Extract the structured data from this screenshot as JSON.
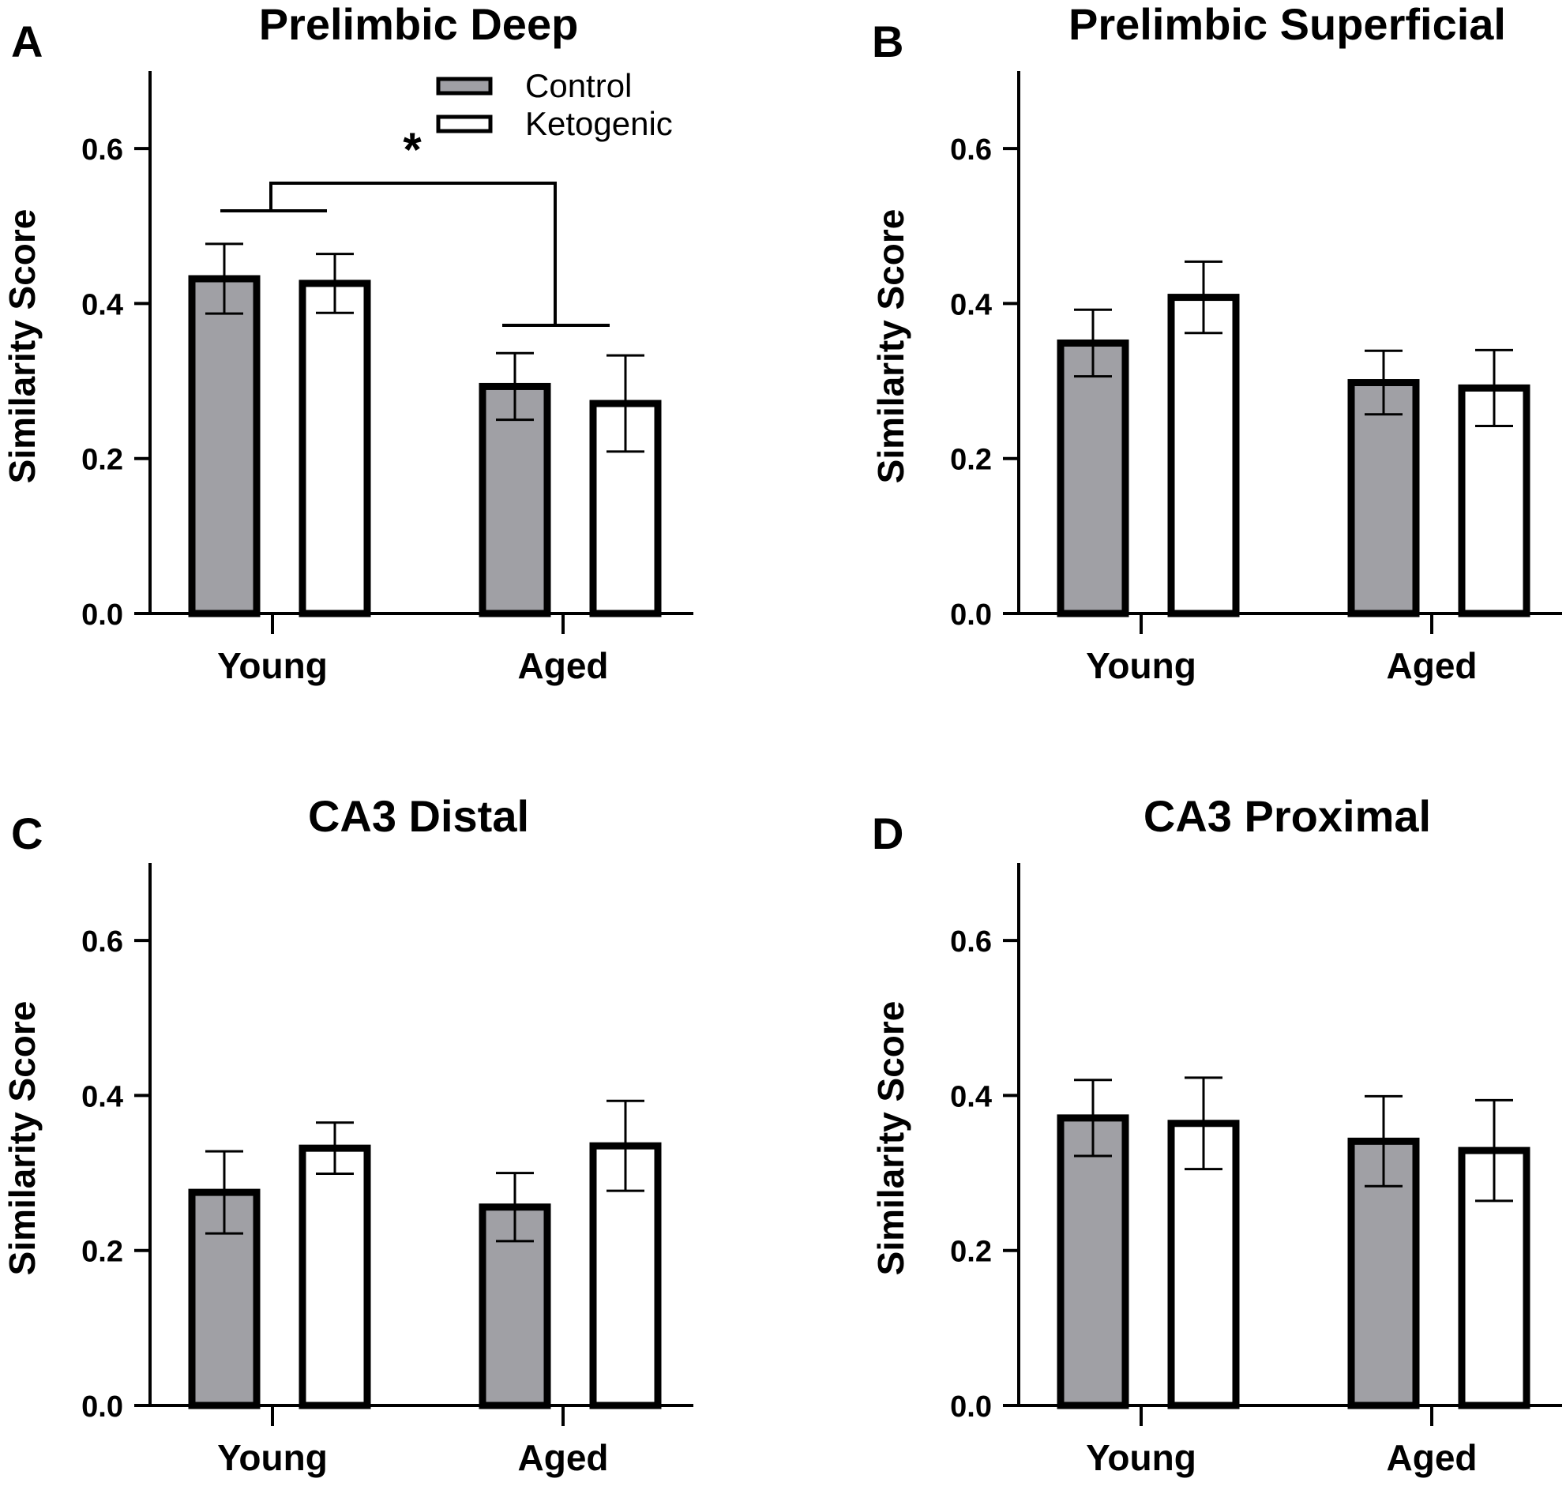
{
  "legend": {
    "items": [
      {
        "label": "Control",
        "fill": "#a0a0a5"
      },
      {
        "label": "Ketogenic",
        "fill": "#ffffff"
      }
    ]
  },
  "colors": {
    "control": "#a0a0a5",
    "ketogenic": "#ffffff",
    "stroke": "#000000"
  },
  "chart_data": [
    {
      "panel": "A",
      "type": "bar",
      "title": "Prelimbic Deep",
      "ylabel": "Similarity Score",
      "xlabel": "",
      "ylim": [
        0,
        0.7
      ],
      "yticks": [
        "0.0",
        "0.2",
        "0.4",
        "0.6"
      ],
      "categories": [
        "Young",
        "Aged"
      ],
      "series": [
        {
          "name": "Control",
          "values": [
            0.432,
            0.293
          ],
          "errors": [
            0.045,
            0.043
          ]
        },
        {
          "name": "Ketogenic",
          "values": [
            0.426,
            0.271
          ],
          "errors": [
            0.038,
            0.062
          ]
        }
      ],
      "significance": {
        "label": "*",
        "between": [
          "Young",
          "Aged"
        ]
      }
    },
    {
      "panel": "B",
      "type": "bar",
      "title": "Prelimbic Superficial",
      "ylabel": "Similarity Score",
      "xlabel": "",
      "ylim": [
        0,
        0.7
      ],
      "yticks": [
        "0.0",
        "0.2",
        "0.4",
        "0.6"
      ],
      "categories": [
        "Young",
        "Aged"
      ],
      "series": [
        {
          "name": "Control",
          "values": [
            0.349,
            0.298
          ],
          "errors": [
            0.043,
            0.041
          ]
        },
        {
          "name": "Ketogenic",
          "values": [
            0.408,
            0.291
          ],
          "errors": [
            0.046,
            0.049
          ]
        }
      ]
    },
    {
      "panel": "C",
      "type": "bar",
      "title": "CA3 Distal",
      "ylabel": "Similarity Score",
      "xlabel": "",
      "ylim": [
        0,
        0.7
      ],
      "yticks": [
        "0.0",
        "0.2",
        "0.4",
        "0.6"
      ],
      "categories": [
        "Young",
        "Aged"
      ],
      "series": [
        {
          "name": "Control",
          "values": [
            0.275,
            0.256
          ],
          "errors": [
            0.053,
            0.044
          ]
        },
        {
          "name": "Ketogenic",
          "values": [
            0.332,
            0.335
          ],
          "errors": [
            0.033,
            0.058
          ]
        }
      ]
    },
    {
      "panel": "D",
      "type": "bar",
      "title": "CA3 Proximal",
      "ylabel": "Similarity Score",
      "xlabel": "",
      "ylim": [
        0,
        0.7
      ],
      "yticks": [
        "0.0",
        "0.2",
        "0.4",
        "0.6"
      ],
      "categories": [
        "Young",
        "Aged"
      ],
      "series": [
        {
          "name": "Control",
          "values": [
            0.371,
            0.341
          ],
          "errors": [
            0.049,
            0.058
          ]
        },
        {
          "name": "Ketogenic",
          "values": [
            0.364,
            0.329
          ],
          "errors": [
            0.059,
            0.065
          ]
        }
      ]
    }
  ]
}
